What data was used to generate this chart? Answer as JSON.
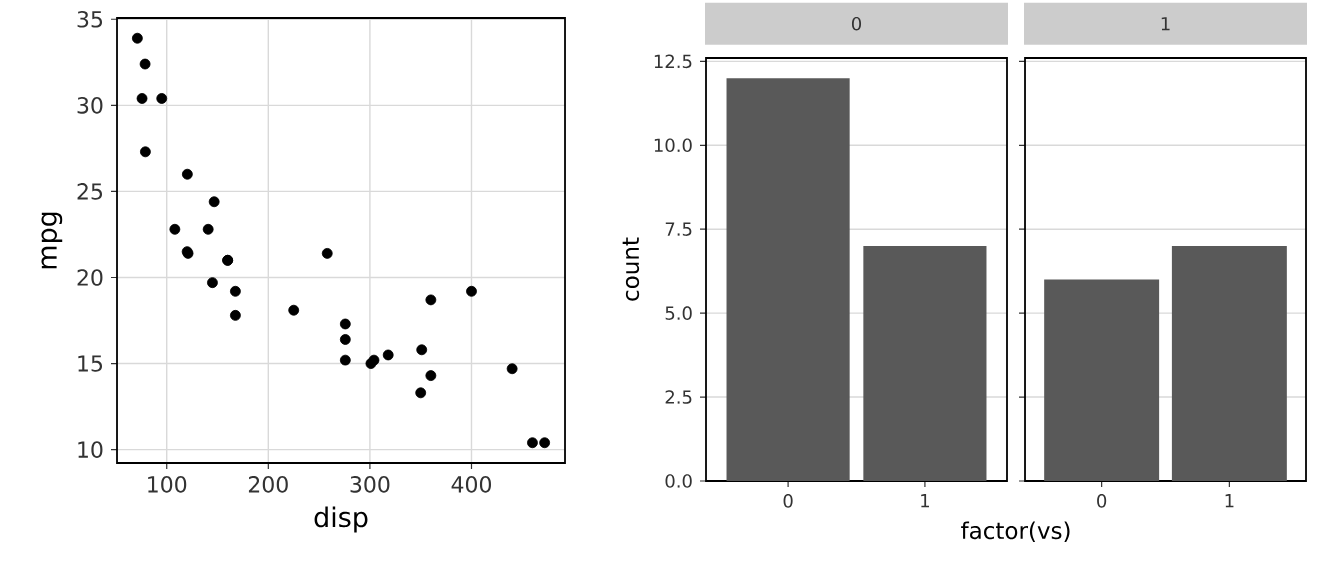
{
  "chart_data": [
    {
      "type": "scatter",
      "xlabel": "disp",
      "ylabel": "mpg",
      "x": [
        160,
        160,
        108,
        258,
        360,
        225,
        360,
        146.7,
        140.8,
        167.6,
        167.6,
        275.8,
        275.8,
        275.8,
        472,
        460,
        440,
        78.7,
        75.7,
        71.1,
        120.1,
        318,
        304,
        350,
        400,
        79,
        120.3,
        95.1,
        351,
        145,
        301,
        121
      ],
      "values": [
        21.0,
        21.0,
        22.8,
        21.4,
        18.7,
        18.1,
        14.3,
        24.4,
        22.8,
        19.2,
        17.8,
        16.4,
        17.3,
        15.2,
        10.4,
        10.4,
        14.7,
        32.4,
        30.4,
        33.9,
        21.5,
        15.5,
        15.2,
        13.3,
        19.2,
        27.3,
        26.0,
        30.4,
        15.8,
        19.7,
        15.0,
        21.4
      ],
      "color": "#000000",
      "marker": "circle",
      "xlim": [
        51.055,
        492.045
      ],
      "ylim": [
        9.225,
        35.075
      ],
      "xticks": [
        100,
        200,
        300,
        400
      ],
      "yticks": [
        10,
        15,
        20,
        25,
        30,
        35
      ],
      "grid": true
    },
    {
      "type": "bar",
      "title": "0",
      "ylabel": "count",
      "xlabel": "factor(vs)",
      "categories": [
        "0",
        "1"
      ],
      "values": [
        12,
        7
      ],
      "color": "#595959",
      "ylim": [
        0,
        12.6
      ],
      "yticks": [
        {
          "value": 0,
          "label": "0.0"
        },
        {
          "value": 2.5,
          "label": "2.5"
        },
        {
          "value": 5,
          "label": "5.0"
        },
        {
          "value": 7.5,
          "label": "7.5"
        },
        {
          "value": 10,
          "label": "10.0"
        },
        {
          "value": 12.5,
          "label": "12.5"
        }
      ],
      "grid": "y"
    },
    {
      "type": "bar",
      "title": "1",
      "categories": [
        "0",
        "1"
      ],
      "values": [
        6,
        7
      ],
      "color": "#595959",
      "ylim": [
        0,
        12.6
      ],
      "yticks": [
        0,
        2.5,
        5,
        7.5,
        10,
        12.5
      ],
      "grid": "y",
      "tick_labels": "x"
    }
  ]
}
